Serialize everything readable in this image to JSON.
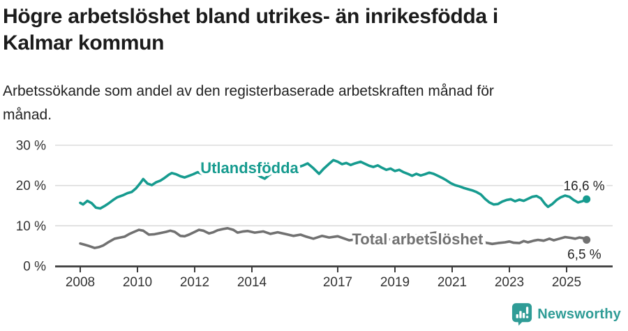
{
  "header": {
    "title_lines": [
      "Högre arbetslöshet bland utrikes- än inrikesfödda i",
      "Kalmar kommun"
    ],
    "subtitle_lines": [
      "Arbetssökande som andel av den registerbaserade arbetskraften månad för",
      "månad."
    ]
  },
  "chart_data": {
    "type": "line",
    "title": "Högre arbetslöshet bland utrikes- än inrikesfödda i Kalmar kommun",
    "subtitle": "Arbetssökande som andel av den registerbaserade arbetskraften månad för månad.",
    "x_unit": "year, monthly observations",
    "xlim": [
      2007.122,
      2026.61
    ],
    "ylim": [
      0,
      30
    ],
    "grid": "horizontal",
    "yticks": [
      {
        "value": 0,
        "label": "0 %"
      },
      {
        "value": 10,
        "label": "10 %"
      },
      {
        "value": 20,
        "label": "20 %"
      },
      {
        "value": 30,
        "label": "30 %"
      }
    ],
    "xticks": [
      {
        "value": 2008,
        "label": "2008"
      },
      {
        "value": 2010,
        "label": "2010"
      },
      {
        "value": 2012,
        "label": "2012"
      },
      {
        "value": 2014,
        "label": "2014"
      },
      {
        "value": 2017,
        "label": "2017"
      },
      {
        "value": 2019,
        "label": "2019"
      },
      {
        "value": 2021,
        "label": "2021"
      },
      {
        "value": 2023,
        "label": "2023"
      },
      {
        "value": 2025,
        "label": "2025"
      }
    ],
    "series": [
      {
        "name": "Utlandsfödda",
        "color": "#169B8F",
        "line_label": {
          "year": 2012.2,
          "pct": 23.05
        },
        "end_label": {
          "text": "16,6 %",
          "dx": 26,
          "dy": -13
        },
        "end_value": 16.6,
        "points": [
          [
            2008.0,
            15.7
          ],
          [
            2008.1,
            15.3
          ],
          [
            2008.25,
            16.2
          ],
          [
            2008.4,
            15.6
          ],
          [
            2008.55,
            14.5
          ],
          [
            2008.7,
            14.3
          ],
          [
            2008.85,
            14.9
          ],
          [
            2009.0,
            15.6
          ],
          [
            2009.15,
            16.4
          ],
          [
            2009.3,
            17.1
          ],
          [
            2009.5,
            17.6
          ],
          [
            2009.65,
            18.1
          ],
          [
            2009.8,
            18.4
          ],
          [
            2009.95,
            19.3
          ],
          [
            2010.1,
            20.6
          ],
          [
            2010.2,
            21.6
          ],
          [
            2010.35,
            20.5
          ],
          [
            2010.5,
            20.1
          ],
          [
            2010.65,
            20.8
          ],
          [
            2010.8,
            21.2
          ],
          [
            2010.95,
            21.9
          ],
          [
            2011.1,
            22.7
          ],
          [
            2011.2,
            23.1
          ],
          [
            2011.35,
            22.8
          ],
          [
            2011.5,
            22.3
          ],
          [
            2011.65,
            22.0
          ],
          [
            2011.8,
            22.4
          ],
          [
            2011.95,
            22.8
          ],
          [
            2012.1,
            23.3
          ],
          [
            2012.25,
            22.9
          ],
          [
            2012.4,
            23.3
          ],
          [
            2012.55,
            23.1
          ],
          [
            2012.7,
            23.5
          ],
          [
            2012.85,
            23.9
          ],
          [
            2013.0,
            24.3
          ],
          [
            2013.15,
            24.8
          ],
          [
            2013.3,
            24.5
          ],
          [
            2013.5,
            24.1
          ],
          [
            2013.7,
            24.5
          ],
          [
            2013.9,
            23.9
          ],
          [
            2014.1,
            23.2
          ],
          [
            2014.3,
            22.2
          ],
          [
            2014.45,
            21.7
          ],
          [
            2014.6,
            22.6
          ],
          [
            2014.8,
            23.4
          ],
          [
            2015.0,
            24.0
          ],
          [
            2015.2,
            24.4
          ],
          [
            2015.4,
            24.1
          ],
          [
            2015.6,
            24.5
          ],
          [
            2015.8,
            25.0
          ],
          [
            2015.95,
            25.5
          ],
          [
            2016.15,
            24.3
          ],
          [
            2016.35,
            22.9
          ],
          [
            2016.5,
            24.1
          ],
          [
            2016.7,
            25.4
          ],
          [
            2016.85,
            26.3
          ],
          [
            2017.0,
            25.9
          ],
          [
            2017.15,
            25.3
          ],
          [
            2017.3,
            25.6
          ],
          [
            2017.45,
            25.1
          ],
          [
            2017.6,
            25.5
          ],
          [
            2017.8,
            25.9
          ],
          [
            2017.95,
            25.4
          ],
          [
            2018.1,
            24.9
          ],
          [
            2018.25,
            24.6
          ],
          [
            2018.4,
            25.0
          ],
          [
            2018.55,
            24.4
          ],
          [
            2018.7,
            23.9
          ],
          [
            2018.85,
            24.2
          ],
          [
            2019.0,
            23.6
          ],
          [
            2019.15,
            23.9
          ],
          [
            2019.3,
            23.3
          ],
          [
            2019.45,
            22.9
          ],
          [
            2019.6,
            22.4
          ],
          [
            2019.75,
            22.9
          ],
          [
            2019.9,
            22.5
          ],
          [
            2020.05,
            22.8
          ],
          [
            2020.2,
            23.2
          ],
          [
            2020.35,
            22.9
          ],
          [
            2020.5,
            22.4
          ],
          [
            2020.65,
            21.9
          ],
          [
            2020.8,
            21.3
          ],
          [
            2020.95,
            20.6
          ],
          [
            2021.1,
            20.1
          ],
          [
            2021.25,
            19.8
          ],
          [
            2021.4,
            19.4
          ],
          [
            2021.55,
            19.1
          ],
          [
            2021.7,
            18.8
          ],
          [
            2021.85,
            18.4
          ],
          [
            2022.0,
            17.8
          ],
          [
            2022.15,
            16.7
          ],
          [
            2022.3,
            15.8
          ],
          [
            2022.45,
            15.3
          ],
          [
            2022.6,
            15.4
          ],
          [
            2022.75,
            16.0
          ],
          [
            2022.9,
            16.4
          ],
          [
            2023.05,
            16.6
          ],
          [
            2023.2,
            16.1
          ],
          [
            2023.35,
            16.5
          ],
          [
            2023.5,
            16.2
          ],
          [
            2023.65,
            16.7
          ],
          [
            2023.8,
            17.2
          ],
          [
            2023.95,
            17.4
          ],
          [
            2024.1,
            16.8
          ],
          [
            2024.25,
            15.4
          ],
          [
            2024.35,
            14.7
          ],
          [
            2024.5,
            15.4
          ],
          [
            2024.65,
            16.4
          ],
          [
            2024.8,
            17.1
          ],
          [
            2024.95,
            17.5
          ],
          [
            2025.1,
            17.2
          ],
          [
            2025.25,
            16.4
          ],
          [
            2025.4,
            15.8
          ],
          [
            2025.55,
            16.1
          ],
          [
            2025.7,
            16.6
          ]
        ]
      },
      {
        "name": "Total arbetslöshet",
        "color": "#717171",
        "line_label": {
          "year": 2017.5,
          "pct": 5.4
        },
        "end_label": {
          "text": "6,5 %",
          "dx": 21,
          "dy": 27
        },
        "end_value": 6.5,
        "points": [
          [
            2008.0,
            5.6
          ],
          [
            2008.15,
            5.3
          ],
          [
            2008.3,
            5.0
          ],
          [
            2008.5,
            4.5
          ],
          [
            2008.65,
            4.7
          ],
          [
            2008.8,
            5.1
          ],
          [
            2009.0,
            6.0
          ],
          [
            2009.2,
            6.8
          ],
          [
            2009.4,
            7.1
          ],
          [
            2009.55,
            7.3
          ],
          [
            2009.7,
            7.9
          ],
          [
            2009.85,
            8.4
          ],
          [
            2010.05,
            9.0
          ],
          [
            2010.2,
            8.8
          ],
          [
            2010.4,
            7.8
          ],
          [
            2010.6,
            7.9
          ],
          [
            2010.8,
            8.2
          ],
          [
            2011.0,
            8.5
          ],
          [
            2011.15,
            8.8
          ],
          [
            2011.3,
            8.5
          ],
          [
            2011.5,
            7.5
          ],
          [
            2011.65,
            7.4
          ],
          [
            2011.8,
            7.8
          ],
          [
            2011.95,
            8.3
          ],
          [
            2012.15,
            9.0
          ],
          [
            2012.3,
            8.8
          ],
          [
            2012.5,
            8.1
          ],
          [
            2012.65,
            8.4
          ],
          [
            2012.8,
            8.9
          ],
          [
            2013.0,
            9.2
          ],
          [
            2013.15,
            9.4
          ],
          [
            2013.35,
            9.0
          ],
          [
            2013.5,
            8.3
          ],
          [
            2013.7,
            8.6
          ],
          [
            2013.85,
            8.7
          ],
          [
            2014.1,
            8.3
          ],
          [
            2014.4,
            8.6
          ],
          [
            2014.65,
            8.0
          ],
          [
            2014.9,
            8.4
          ],
          [
            2015.2,
            7.9
          ],
          [
            2015.45,
            7.5
          ],
          [
            2015.7,
            7.8
          ],
          [
            2015.9,
            7.3
          ],
          [
            2016.15,
            6.8
          ],
          [
            2016.45,
            7.5
          ],
          [
            2016.7,
            7.1
          ],
          [
            2017.0,
            7.4
          ],
          [
            2017.4,
            6.4
          ],
          [
            2017.7,
            6.7
          ],
          [
            2018.0,
            6.5
          ],
          [
            2018.4,
            6.3
          ],
          [
            2018.8,
            6.6
          ],
          [
            2019.2,
            7.0
          ],
          [
            2019.6,
            7.5
          ],
          [
            2020.0,
            7.8
          ],
          [
            2020.4,
            8.3
          ],
          [
            2020.7,
            8.1
          ],
          [
            2021.0,
            7.7
          ],
          [
            2021.4,
            7.1
          ],
          [
            2021.8,
            6.5
          ],
          [
            2022.1,
            5.9
          ],
          [
            2022.25,
            5.7
          ],
          [
            2022.4,
            5.5
          ],
          [
            2022.6,
            5.7
          ],
          [
            2022.85,
            5.9
          ],
          [
            2023.0,
            6.1
          ],
          [
            2023.15,
            5.8
          ],
          [
            2023.35,
            5.7
          ],
          [
            2023.5,
            6.2
          ],
          [
            2023.65,
            5.9
          ],
          [
            2023.85,
            6.3
          ],
          [
            2024.0,
            6.5
          ],
          [
            2024.2,
            6.3
          ],
          [
            2024.4,
            6.8
          ],
          [
            2024.55,
            6.4
          ],
          [
            2024.75,
            6.8
          ],
          [
            2024.95,
            7.2
          ],
          [
            2025.15,
            7.0
          ],
          [
            2025.3,
            6.8
          ],
          [
            2025.45,
            7.1
          ],
          [
            2025.6,
            6.9
          ],
          [
            2025.7,
            6.5
          ]
        ]
      }
    ]
  },
  "branding": {
    "logo_text": "Newsworthy",
    "logo_color": "#2F9C96",
    "icon": "newsworthy-speech-bubble-bar-chart-icon"
  },
  "colors": {
    "grid": "#DBDBDB",
    "axis": "#3B3B3B",
    "tick_label": "#333333",
    "value_label": "#242424"
  }
}
